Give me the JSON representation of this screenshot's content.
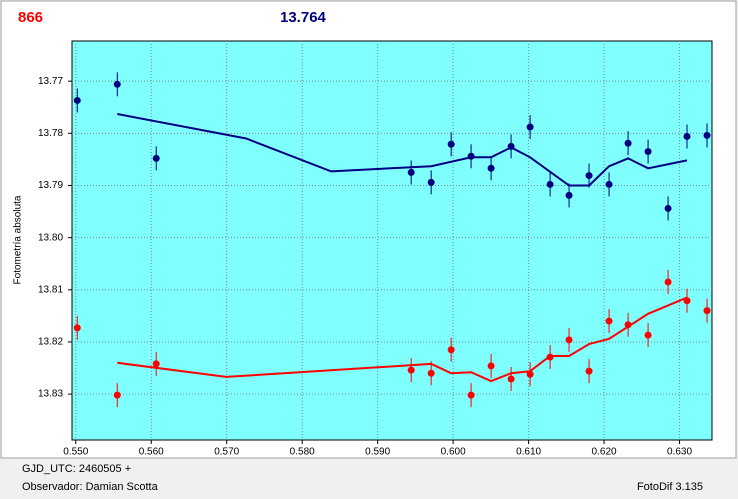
{
  "chart_data": {
    "type": "scatter",
    "star_id": "866",
    "magnitude": "13.764",
    "y_label": "Fotometría absoluta",
    "footer_lines": [
      "GJD_UTC: 2460505 +",
      "Observador: Damian Scotta"
    ],
    "footer_right": "FotoDif 3.135",
    "xlim": [
      0.5495,
      0.6343
    ],
    "ylim": [
      13.8388,
      13.7623
    ],
    "xticks": [
      {
        "value": 0.55,
        "label": "0.550"
      },
      {
        "value": 0.56,
        "label": "0.560"
      },
      {
        "value": 0.57,
        "label": "0.570"
      },
      {
        "value": 0.58,
        "label": "0.580"
      },
      {
        "value": 0.59,
        "label": "0.590"
      },
      {
        "value": 0.6,
        "label": "0.600"
      },
      {
        "value": 0.61,
        "label": "0.610"
      },
      {
        "value": 0.62,
        "label": "0.620"
      },
      {
        "value": 0.63,
        "label": "0.630"
      }
    ],
    "yticks": [
      13.77,
      13.78,
      13.79,
      {
        "value": 13.8,
        "label": "13.80"
      },
      13.81,
      13.82,
      13.83
    ],
    "grid": true,
    "series": [
      {
        "color": "#000080",
        "style": "points",
        "x": [
          0.5502,
          0.5555,
          0.56066,
          0.59444,
          0.59709,
          0.59974,
          0.60238,
          0.60503,
          0.60768,
          0.6102,
          0.61285,
          0.61536,
          0.61801,
          0.62066,
          0.62318,
          0.62583,
          0.62848,
          0.63099,
          0.63364
        ],
        "values": [
          13.7737,
          13.7706,
          13.7848,
          13.7875,
          13.7894,
          13.7821,
          13.7844,
          13.7867,
          13.7825,
          13.7788,
          13.7898,
          13.7919,
          13.7881,
          13.7898,
          13.7819,
          13.7835,
          13.7944,
          13.7806,
          13.7804
        ],
        "errors": [
          0.0023,
          0.0023,
          0.0023,
          0.0023,
          0.0023,
          0.0023,
          0.0023,
          0.0023,
          0.0023,
          0.0023,
          0.0023,
          0.0023,
          0.0023,
          0.0023,
          0.0023,
          0.0023,
          0.0023,
          0.0023,
          0.0023
        ]
      },
      {
        "color": "#ff0000",
        "style": "points",
        "x": [
          0.5502,
          0.5555,
          0.56066,
          0.59444,
          0.59709,
          0.59974,
          0.60238,
          0.60503,
          0.60768,
          0.6102,
          0.61285,
          0.61536,
          0.61801,
          0.62066,
          0.62318,
          0.62583,
          0.62848,
          0.63099,
          0.63364
        ],
        "values": [
          13.8173,
          13.8302,
          13.8242,
          13.8254,
          13.826,
          13.8215,
          13.8302,
          13.8246,
          13.8271,
          13.8262,
          13.8229,
          13.8196,
          13.8256,
          13.816,
          13.8167,
          13.8187,
          13.8085,
          13.8121,
          13.814
        ],
        "errors": [
          0.0023,
          0.0023,
          0.0023,
          0.0023,
          0.0023,
          0.0023,
          0.0023,
          0.0023,
          0.0023,
          0.0023,
          0.0023,
          0.0023,
          0.0023,
          0.0023,
          0.0023,
          0.0023,
          0.0023,
          0.0023,
          0.0023
        ]
      },
      {
        "color": "#000080",
        "style": "line",
        "x": [
          0.5555,
          0.57258,
          0.58384,
          0.59709,
          0.60238,
          0.60503,
          0.60768,
          0.6102,
          0.61536,
          0.61801,
          0.62066,
          0.62318,
          0.62583,
          0.63099
        ],
        "values": [
          13.7763,
          13.781,
          13.7873,
          13.7863,
          13.7846,
          13.7846,
          13.7827,
          13.7846,
          13.79,
          13.79,
          13.7863,
          13.7848,
          13.7867,
          13.7852
        ]
      },
      {
        "color": "#ff0000",
        "style": "line",
        "x": [
          0.5555,
          0.56993,
          0.59709,
          0.59974,
          0.60238,
          0.60503,
          0.60768,
          0.6102,
          0.61285,
          0.61536,
          0.61801,
          0.62066,
          0.62583,
          0.63099
        ],
        "values": [
          13.824,
          13.8267,
          13.8242,
          13.826,
          13.8258,
          13.8275,
          13.826,
          13.8256,
          13.8227,
          13.8227,
          13.8204,
          13.8194,
          13.8146,
          13.8115
        ]
      }
    ]
  }
}
